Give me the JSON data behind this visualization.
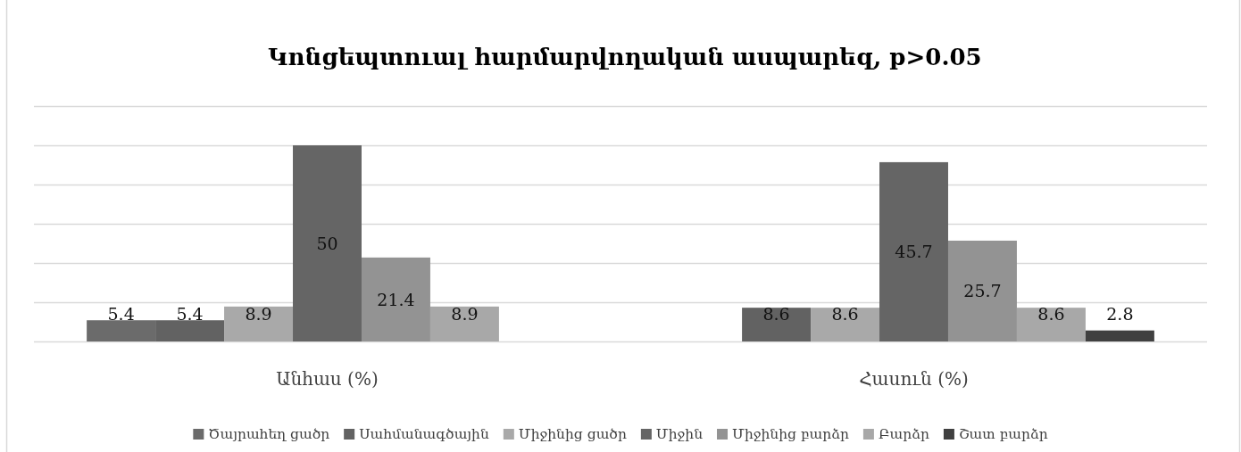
{
  "chart_data": {
    "type": "bar",
    "title": "Կոնցեպտուալ հարմարվողական ասպարեզ, p>0.05",
    "categories": [
      "Անհաս (%)",
      "Հասուն (%)"
    ],
    "series": [
      {
        "name": "Ծայրահեղ ցածր",
        "color": "#6b6b6b",
        "values": [
          5.4,
          null
        ]
      },
      {
        "name": "Սահմանագծային",
        "color": "#626262",
        "values": [
          5.4,
          8.6
        ]
      },
      {
        "name": "Միջինից ցածր",
        "color": "#a9a9a9",
        "values": [
          8.9,
          8.6
        ]
      },
      {
        "name": "Միջին",
        "color": "#656565",
        "values": [
          50,
          45.7
        ]
      },
      {
        "name": "Միջինից բարձր",
        "color": "#939393",
        "values": [
          21.4,
          25.7
        ]
      },
      {
        "name": "Բարձր",
        "color": "#a8a8a8",
        "values": [
          8.9,
          8.6
        ]
      },
      {
        "name": "Շատ բարձր",
        "color": "#404040",
        "values": [
          null,
          2.8
        ]
      }
    ],
    "ylim": [
      0,
      60
    ],
    "yticks": [
      {
        "value": 0,
        "label": null
      },
      {
        "value": 10,
        "label": null
      },
      {
        "value": 20,
        "label": null
      },
      {
        "value": 30,
        "label": null
      },
      {
        "value": 40,
        "label": null
      },
      {
        "value": 50,
        "label": null
      },
      {
        "value": 60,
        "label": null
      }
    ],
    "grid": "y",
    "tick_labels": "x",
    "legend": "bottom",
    "data_labels": true
  }
}
